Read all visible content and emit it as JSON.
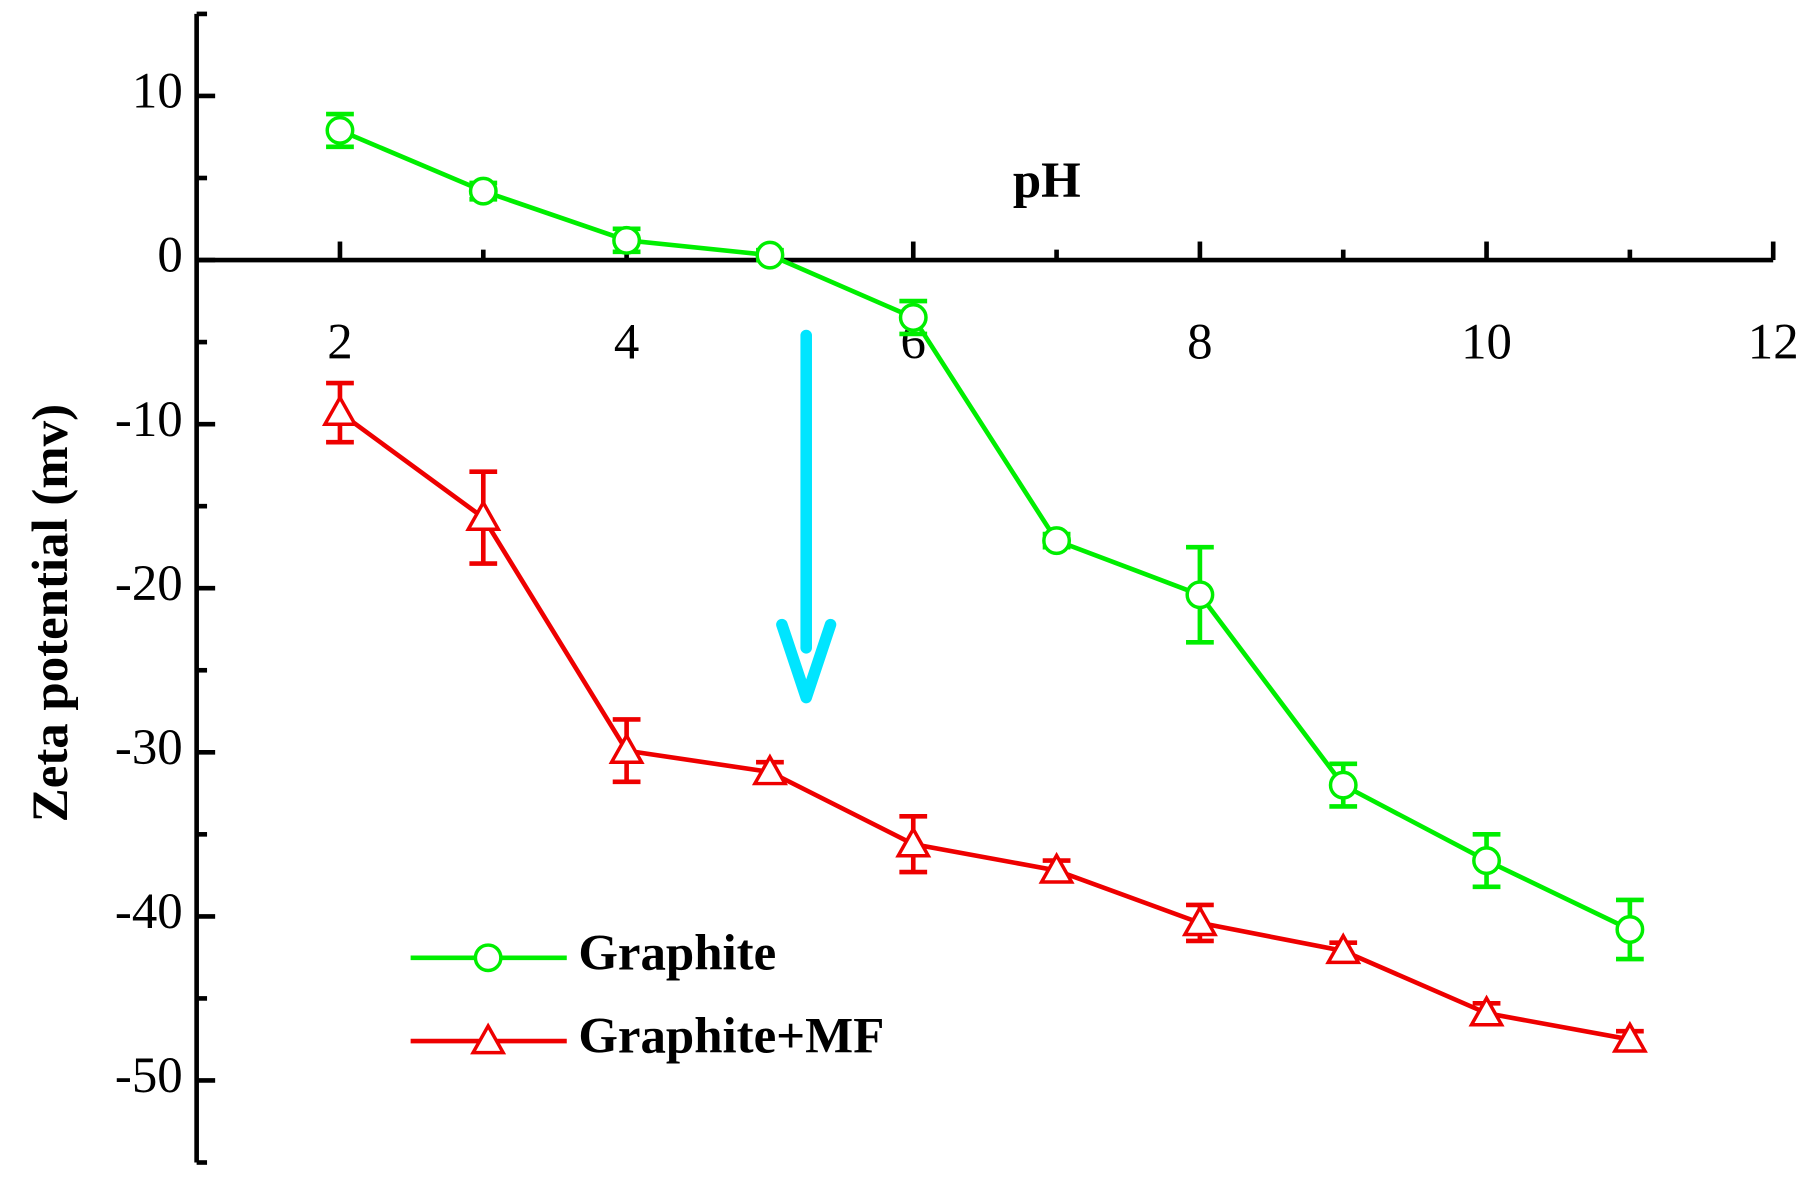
{
  "chart_data": {
    "type": "line",
    "x_label": "pH",
    "y_label": "Zeta potential (mv)",
    "x": [
      2,
      3,
      4,
      5,
      6,
      7,
      8,
      9,
      10,
      11
    ],
    "series": [
      {
        "name": "Graphite",
        "color": "#00ee00",
        "marker": "circle",
        "values": [
          7.9,
          4.2,
          1.2,
          0.3,
          -3.5,
          -17.1,
          -20.4,
          -32.0,
          -36.6,
          -40.8
        ],
        "errors": [
          1.0,
          0.5,
          0.7,
          0.3,
          1.0,
          0.4,
          2.9,
          1.3,
          1.6,
          1.8
        ]
      },
      {
        "name": "Graphite+MF",
        "color": "#ee0000",
        "marker": "triangle",
        "values": [
          -9.3,
          -15.7,
          -29.9,
          -31.2,
          -35.6,
          -37.2,
          -40.4,
          -42.1,
          -45.9,
          -47.5
        ],
        "errors": [
          1.8,
          2.8,
          1.9,
          0.6,
          1.7,
          0.6,
          1.1,
          0.5,
          0.6,
          0.5
        ]
      }
    ],
    "xlim": [
      1,
      12
    ],
    "xticks": [
      2,
      4,
      6,
      8,
      10,
      12
    ],
    "xminorticks": [
      3,
      5,
      7,
      9,
      11
    ],
    "ylim": [
      -55,
      15
    ],
    "yticks": [
      10,
      0,
      -10,
      -20,
      -30,
      -40,
      -50
    ],
    "yminorticks": [
      15,
      5,
      -5,
      -15,
      -25,
      -35,
      -45,
      -55
    ],
    "grid": false
  }
}
